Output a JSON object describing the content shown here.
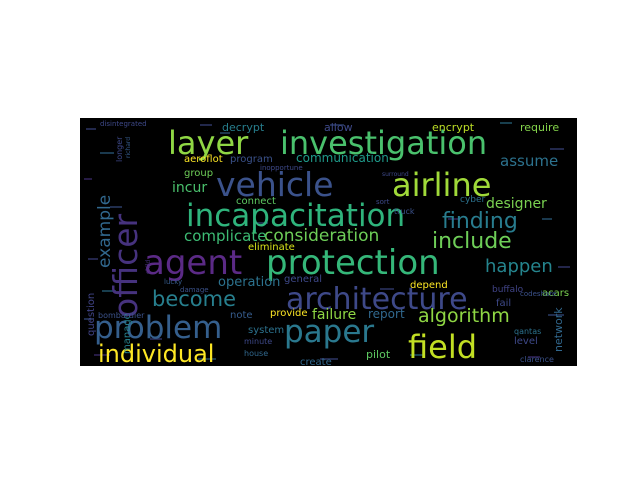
{
  "palette": {
    "background": "#000000",
    "page": "#ffffff",
    "viridis": [
      "#440154",
      "#46327e",
      "#365c8d",
      "#277f8e",
      "#1fa187",
      "#4ac16d",
      "#a0da39",
      "#fde725"
    ]
  },
  "words": [
    {
      "text": "investigation",
      "color": "#4ac16d"
    },
    {
      "text": "layer",
      "color": "#8fd744"
    },
    {
      "text": "vehicle",
      "color": "#3b528b"
    },
    {
      "text": "airline",
      "color": "#a0da39"
    },
    {
      "text": "incapacitation",
      "color": "#2fb47c"
    },
    {
      "text": "officer",
      "color": "#46327e"
    },
    {
      "text": "finding",
      "color": "#287c8e"
    },
    {
      "text": "agent",
      "color": "#5b2a86"
    },
    {
      "text": "protection",
      "color": "#35b779"
    },
    {
      "text": "include",
      "color": "#6ece58"
    },
    {
      "text": "architecture",
      "color": "#3e4989"
    },
    {
      "text": "problem",
      "color": "#355f8d"
    },
    {
      "text": "paper",
      "color": "#2a788e"
    },
    {
      "text": "field",
      "color": "#c2df23"
    },
    {
      "text": "individual",
      "color": "#fde725"
    },
    {
      "text": "become",
      "color": "#277f8e"
    },
    {
      "text": "happen",
      "color": "#25858e"
    },
    {
      "text": "algorithm",
      "color": "#8fd744"
    },
    {
      "text": "example",
      "color": "#31688e"
    },
    {
      "text": "consideration",
      "color": "#6ece58"
    },
    {
      "text": "complicate",
      "color": "#3dbc74"
    },
    {
      "text": "designer",
      "color": "#7ad151"
    },
    {
      "text": "assume",
      "color": "#2c728e"
    },
    {
      "text": "failure",
      "color": "#8fd744"
    },
    {
      "text": "report",
      "color": "#31688e"
    },
    {
      "text": "operation",
      "color": "#2c728e"
    },
    {
      "text": "communication",
      "color": "#1f9a8a"
    },
    {
      "text": "incur",
      "color": "#4ac16d"
    },
    {
      "text": "decrypt",
      "color": "#277f8e"
    },
    {
      "text": "encrypt",
      "color": "#bddf26"
    },
    {
      "text": "require",
      "color": "#84d44b"
    },
    {
      "text": "allow",
      "color": "#3e4989"
    },
    {
      "text": "program",
      "color": "#3b528b"
    },
    {
      "text": "group",
      "color": "#6ece58"
    },
    {
      "text": "aeroflot",
      "color": "#fde725"
    },
    {
      "text": "connect",
      "color": "#5ec962"
    },
    {
      "text": "eliminate",
      "color": "#d8e219"
    },
    {
      "text": "provide",
      "color": "#fde725"
    },
    {
      "text": "depend",
      "color": "#fde725"
    },
    {
      "text": "general",
      "color": "#3e4989"
    },
    {
      "text": "system",
      "color": "#2c728e"
    },
    {
      "text": "note",
      "color": "#365c8d"
    },
    {
      "text": "create",
      "color": "#31688e"
    },
    {
      "text": "pilot",
      "color": "#5ec962"
    },
    {
      "text": "level",
      "color": "#3e4989"
    },
    {
      "text": "network",
      "color": "#31688e"
    },
    {
      "text": "question",
      "color": "#414487"
    },
    {
      "text": "manage",
      "color": "#26828e"
    },
    {
      "text": "acars",
      "color": "#7ad151"
    },
    {
      "text": "fail",
      "color": "#3e4989"
    },
    {
      "text": "buffalo",
      "color": "#414487"
    },
    {
      "text": "cyber",
      "color": "#2c728e"
    },
    {
      "text": "longer",
      "color": "#3e4989"
    },
    {
      "text": "truck",
      "color": "#3b528b"
    },
    {
      "text": "house",
      "color": "#31688e"
    },
    {
      "text": "minute",
      "color": "#3e4989"
    },
    {
      "text": "bombardier",
      "color": "#3b528b"
    },
    {
      "text": "qantas",
      "color": "#2c728e"
    },
    {
      "text": "clarence",
      "color": "#3b528b"
    },
    {
      "text": "richard",
      "color": "#365c8d"
    },
    {
      "text": "lucky",
      "color": "#365c8d"
    },
    {
      "text": "damage",
      "color": "#3b528b"
    },
    {
      "text": "child",
      "color": "#46327e"
    },
    {
      "text": "sort",
      "color": "#3e4989"
    },
    {
      "text": "surround",
      "color": "#3e4989"
    },
    {
      "text": "inopportune",
      "color": "#3e4989"
    },
    {
      "text": "disintegrated",
      "color": "#3e4989"
    },
    {
      "text": "codeshare",
      "color": "#3b528b"
    }
  ]
}
